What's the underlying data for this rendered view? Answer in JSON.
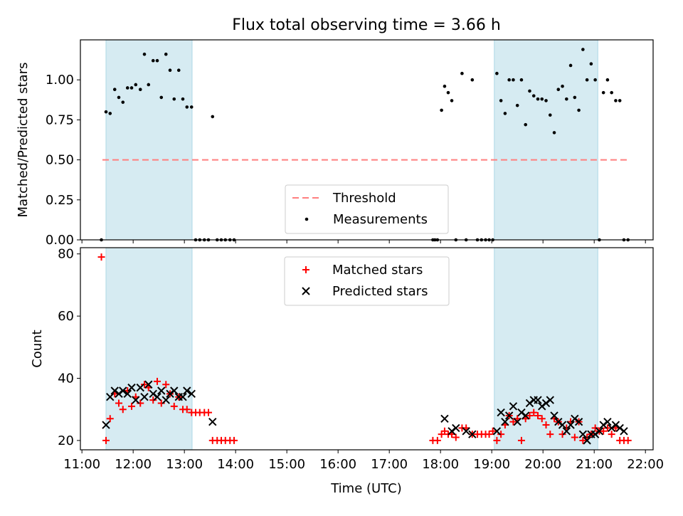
{
  "chart_data": {
    "type": "scatter",
    "title": "Flux total observing time = 3.66 h",
    "xlabel": "Time (UTC)",
    "x_ticks": [
      "11:00",
      "12:00",
      "13:00",
      "14:00",
      "15:00",
      "16:00",
      "17:00",
      "18:00",
      "19:00",
      "20:00",
      "21:00",
      "22:00"
    ],
    "xlim_hours": [
      10.97,
      22.15
    ],
    "shaded_intervals_hours": [
      [
        11.47,
        13.15
      ],
      [
        19.05,
        21.07
      ]
    ],
    "shade_color": "#add8e6",
    "panels": [
      {
        "ylabel": "Matched/Predicted stars",
        "ylim": [
          0,
          1.25
        ],
        "y_ticks": [
          0.0,
          0.25,
          0.5,
          0.75,
          1.0
        ],
        "y_tick_labels": [
          "0.00",
          "0.25",
          "0.50",
          "0.75",
          "1.00"
        ],
        "legend_position": "lower-center",
        "threshold": {
          "name": "Threshold",
          "value": 0.5,
          "x_range_hours": [
            11.4,
            21.65
          ],
          "color": "#ff7f7f"
        },
        "series": [
          {
            "name": "Measurements",
            "marker": "dot",
            "color": "#000000",
            "x_hours": [
              11.38,
              11.47,
              11.55,
              11.64,
              11.72,
              11.8,
              11.89,
              11.97,
              12.05,
              12.14,
              12.22,
              12.3,
              12.39,
              12.47,
              12.55,
              12.64,
              12.72,
              12.8,
              12.89,
              12.97,
              13.05,
              13.14,
              13.22,
              13.3,
              13.39,
              13.47,
              13.55,
              13.64,
              13.72,
              13.8,
              13.89,
              13.97,
              17.85,
              17.89,
              17.94,
              18.02,
              18.08,
              18.15,
              18.22,
              18.3,
              18.42,
              18.5,
              18.62,
              18.72,
              18.8,
              18.88,
              18.95,
              19.02,
              19.1,
              19.18,
              19.26,
              19.34,
              19.42,
              19.5,
              19.58,
              19.66,
              19.74,
              19.82,
              19.9,
              19.98,
              20.06,
              20.14,
              20.22,
              20.3,
              20.38,
              20.46,
              20.54,
              20.62,
              20.7,
              20.78,
              20.86,
              20.94,
              21.02,
              21.1,
              21.18,
              21.26,
              21.34,
              21.42,
              21.5,
              21.58,
              21.66
            ],
            "y": [
              0,
              0.8,
              0.79,
              0.94,
              0.89,
              0.86,
              0.95,
              0.95,
              0.97,
              0.94,
              1.16,
              0.97,
              1.12,
              1.12,
              0.89,
              1.16,
              1.06,
              0.88,
              1.06,
              0.88,
              0.83,
              0.83,
              0,
              0,
              0,
              0,
              0.77,
              0,
              0,
              0,
              0,
              0,
              0,
              0,
              0,
              0.81,
              0.96,
              0.92,
              0.87,
              0,
              1.04,
              0,
              1.0,
              0,
              0,
              0,
              0,
              0,
              1.04,
              0.87,
              0.79,
              1.0,
              1.0,
              0.84,
              1.0,
              0.72,
              0.93,
              0.9,
              0.88,
              0.88,
              0.87,
              0.78,
              0.67,
              0.94,
              0.96,
              0.88,
              1.09,
              0.89,
              0.81,
              1.19,
              1.0,
              1.1,
              1.0,
              0,
              0.92,
              1.0,
              0.92,
              0.87,
              0.87,
              0,
              0
            ]
          }
        ]
      },
      {
        "ylabel": "Count",
        "ylim": [
          17,
          82
        ],
        "y_ticks": [
          20,
          40,
          60,
          80
        ],
        "y_tick_labels": [
          "20",
          "40",
          "60",
          "80"
        ],
        "legend_position": "top-center",
        "series": [
          {
            "name": "Matched stars",
            "marker": "plus",
            "color": "#ff0000",
            "x_hours": [
              11.38,
              11.47,
              11.55,
              11.64,
              11.72,
              11.8,
              11.89,
              11.97,
              12.05,
              12.14,
              12.22,
              12.3,
              12.39,
              12.47,
              12.55,
              12.64,
              12.72,
              12.8,
              12.89,
              12.97,
              13.05,
              13.14,
              13.22,
              13.3,
              13.39,
              13.47,
              13.55,
              13.64,
              13.72,
              13.8,
              13.89,
              13.97,
              17.85,
              17.94,
              18.02,
              18.08,
              18.15,
              18.22,
              18.3,
              18.42,
              18.5,
              18.62,
              18.72,
              18.8,
              18.88,
              18.95,
              19.02,
              19.1,
              19.18,
              19.26,
              19.34,
              19.42,
              19.5,
              19.58,
              19.66,
              19.74,
              19.82,
              19.9,
              19.98,
              20.06,
              20.14,
              20.22,
              20.3,
              20.38,
              20.46,
              20.54,
              20.62,
              20.7,
              20.78,
              20.86,
              20.94,
              21.02,
              21.1,
              21.18,
              21.26,
              21.34,
              21.42,
              21.5,
              21.58,
              21.66
            ],
            "y": [
              79,
              20,
              27,
              35,
              32,
              30,
              36,
              31,
              34,
              32,
              38,
              37,
              33,
              39,
              32,
              38,
              35,
              31,
              34,
              30,
              30,
              29,
              29,
              29,
              29,
              29,
              20,
              20,
              20,
              20,
              20,
              20,
              20,
              20,
              22,
              23,
              22,
              22,
              21,
              24,
              24,
              22,
              22,
              22,
              22,
              22,
              23,
              20,
              22,
              25,
              28,
              26,
              27,
              20,
              27,
              28,
              29,
              28,
              27,
              25,
              22,
              27,
              26,
              22,
              24,
              26,
              21,
              26,
              20,
              21,
              22,
              24,
              23,
              23,
              24,
              22,
              24,
              20,
              20,
              20
            ]
          },
          {
            "name": "Predicted stars",
            "marker": "x",
            "color": "#000000",
            "x_hours": [
              11.47,
              11.55,
              11.64,
              11.72,
              11.8,
              11.89,
              11.97,
              12.05,
              12.14,
              12.22,
              12.3,
              12.39,
              12.47,
              12.55,
              12.64,
              12.72,
              12.8,
              12.89,
              12.97,
              13.05,
              13.14,
              13.55,
              18.08,
              18.22,
              18.3,
              18.5,
              18.62,
              19.1,
              19.18,
              19.26,
              19.34,
              19.42,
              19.5,
              19.58,
              19.66,
              19.74,
              19.82,
              19.9,
              19.98,
              20.06,
              20.14,
              20.22,
              20.3,
              20.38,
              20.46,
              20.54,
              20.62,
              20.7,
              20.78,
              20.86,
              20.94,
              21.02,
              21.1,
              21.18,
              21.26,
              21.34,
              21.42,
              21.5,
              21.58
            ],
            "y": [
              25,
              34,
              36,
              35,
              36,
              35,
              37,
              33,
              37,
              34,
              38,
              35,
              34,
              36,
              33,
              35,
              36,
              34,
              34,
              36,
              35,
              26,
              27,
              23,
              24,
              23,
              22,
              23,
              29,
              26,
              28,
              31,
              26,
              29,
              28,
              32,
              33,
              33,
              31,
              32,
              33,
              28,
              26,
              25,
              23,
              25,
              27,
              26,
              22,
              20,
              22,
              22,
              23,
              25,
              26,
              24,
              25,
              24,
              23
            ]
          }
        ]
      }
    ]
  }
}
